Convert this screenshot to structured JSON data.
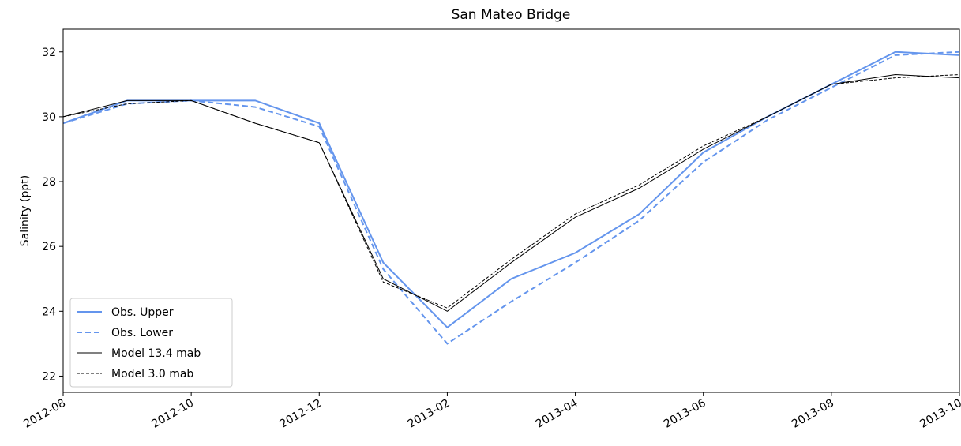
{
  "chart_data": {
    "type": "line",
    "title": "San Mateo Bridge",
    "y_label": "Salinity (ppt)",
    "x": [
      "2012-08",
      "2012-09",
      "2012-10",
      "2012-11",
      "2012-12",
      "2013-01",
      "2013-02",
      "2013-03",
      "2013-04",
      "2013-05",
      "2013-06",
      "2013-07",
      "2013-08",
      "2013-09",
      "2013-10"
    ],
    "series": [
      {
        "name": "Obs. Upper",
        "color": "#6495ed",
        "linestyle": "solid",
        "width": 2,
        "values": [
          29.8,
          30.5,
          30.5,
          30.5,
          29.8,
          25.5,
          23.5,
          25.0,
          25.8,
          27.0,
          28.9,
          30.0,
          31.0,
          32.0,
          31.9
        ]
      },
      {
        "name": "Obs. Lower",
        "color": "#6495ed",
        "linestyle": "dashed",
        "width": 2,
        "values": [
          29.8,
          30.4,
          30.5,
          30.3,
          29.7,
          25.3,
          23.0,
          24.3,
          25.5,
          26.8,
          28.6,
          29.9,
          30.9,
          31.9,
          32.0
        ]
      },
      {
        "name": "Model 13.4 mab",
        "color": "#000000",
        "linestyle": "solid",
        "width": 1,
        "values": [
          30.0,
          30.5,
          30.5,
          29.8,
          29.2,
          25.0,
          24.0,
          25.5,
          26.9,
          27.8,
          29.0,
          30.0,
          31.0,
          31.3,
          31.2
        ]
      },
      {
        "name": "Model 3.0 mab",
        "color": "#000000",
        "linestyle": "dashed",
        "width": 1,
        "values": [
          30.0,
          30.4,
          30.5,
          29.8,
          29.2,
          24.9,
          24.1,
          25.6,
          27.0,
          27.9,
          29.1,
          30.0,
          31.0,
          31.2,
          31.3
        ]
      }
    ],
    "xticks": [
      "2012-08",
      "2012-10",
      "2012-12",
      "2013-02",
      "2013-04",
      "2013-06",
      "2013-08",
      "2013-10"
    ],
    "ylim": [
      21.5,
      32.7
    ],
    "yticks": [
      22,
      24,
      26,
      28,
      30,
      32
    ],
    "legend": "lower left"
  }
}
